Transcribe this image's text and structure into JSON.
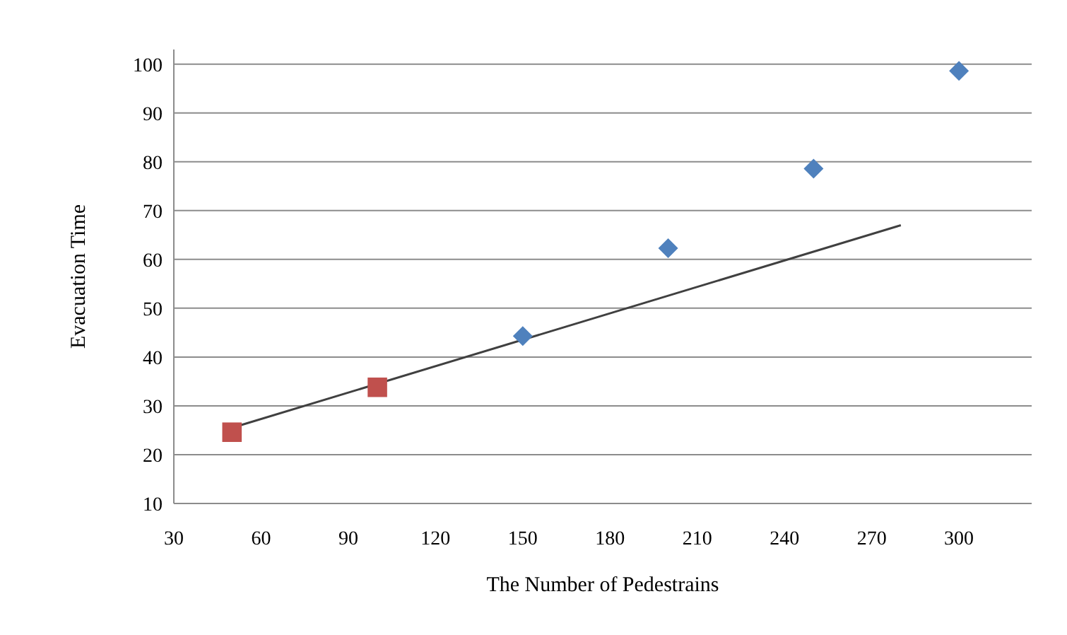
{
  "chart_data": {
    "type": "scatter",
    "xlabel": "The Number of Pedestrains",
    "ylabel": "Evacuation Time",
    "xlim": [
      30,
      325
    ],
    "xticks": [
      30,
      60,
      90,
      120,
      150,
      180,
      210,
      240,
      270,
      300
    ],
    "ylim": [
      10,
      103
    ],
    "yticks": [
      10,
      20,
      30,
      40,
      50,
      60,
      70,
      80,
      90,
      100
    ],
    "grid": "y",
    "series": [
      {
        "marker": "diamond",
        "color": "#4f81bd",
        "x": [
          150,
          200,
          250,
          300
        ],
        "values": [
          44.3,
          62.3,
          78.6,
          98.6
        ]
      },
      {
        "marker": "square",
        "color": "#c0504d",
        "x": [
          50,
          100
        ],
        "values": [
          24.6,
          33.8
        ]
      },
      {
        "type": "line",
        "color": "#404040",
        "x": [
          50,
          280
        ],
        "values": [
          25.5,
          67
        ]
      }
    ]
  }
}
